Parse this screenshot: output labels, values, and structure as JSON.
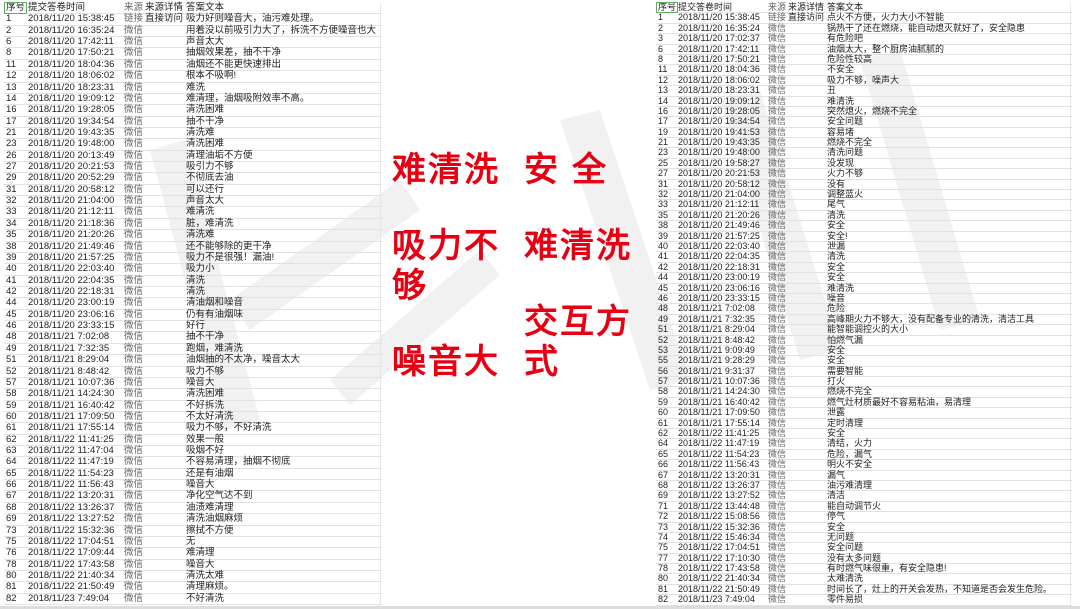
{
  "headers": [
    "序号",
    "提交答卷时间",
    "来源",
    "来源详情",
    "答案文本"
  ],
  "watermark": "KYWORTH",
  "accent_color": "#e60012",
  "left_labels": [
    "难清洗",
    "吸力不够",
    "噪音大"
  ],
  "right_labels": [
    "安全",
    "难清洗",
    "交互方式"
  ],
  "left_rows": [
    [
      "1",
      "2018/11/20 15:38:45",
      "链接",
      "直接访问",
      "吸力好则噪音大，油污难处理。"
    ],
    [
      "2",
      "2018/11/20 16:35:24",
      "微信",
      "",
      "用着没以前吸引力大了，拆洗不方便噪音也大"
    ],
    [
      "6",
      "2018/11/20 17:42:11",
      "微信",
      "",
      "声音太大"
    ],
    [
      "8",
      "2018/11/20 17:50:21",
      "微信",
      "",
      "抽烟效果差，抽不干净"
    ],
    [
      "11",
      "2018/11/20 18:04:36",
      "微信",
      "",
      "油烟还不能更快速排出"
    ],
    [
      "12",
      "2018/11/20 18:06:02",
      "微信",
      "",
      "根本不吸啊!"
    ],
    [
      "13",
      "2018/11/20 18:23:31",
      "微信",
      "",
      "难洗"
    ],
    [
      "14",
      "2018/11/20 19:09:12",
      "微信",
      "",
      "难清理，油烟吸附效率不高。"
    ],
    [
      "16",
      "2018/11/20 19:28:05",
      "微信",
      "",
      "清洗困难"
    ],
    [
      "17",
      "2018/11/20 19:34:54",
      "微信",
      "",
      "抽不干净"
    ],
    [
      "21",
      "2018/11/20 19:43:35",
      "微信",
      "",
      "清洗难"
    ],
    [
      "23",
      "2018/11/20 19:48:00",
      "微信",
      "",
      "清洗困难"
    ],
    [
      "26",
      "2018/11/20 20:13:49",
      "微信",
      "",
      "清理油垢不方便"
    ],
    [
      "27",
      "2018/11/20 20:21:53",
      "微信",
      "",
      "吸引力不够"
    ],
    [
      "29",
      "2018/11/20 20:52:29",
      "微信",
      "",
      "不彻底去油"
    ],
    [
      "31",
      "2018/11/20 20:58:12",
      "微信",
      "",
      "可以还行"
    ],
    [
      "32",
      "2018/11/20 21:04:00",
      "微信",
      "",
      "声音太大"
    ],
    [
      "33",
      "2018/11/20 21:12:11",
      "微信",
      "",
      "难清洗"
    ],
    [
      "34",
      "2018/11/20 21:18:36",
      "微信",
      "",
      "脏，难清洗"
    ],
    [
      "35",
      "2018/11/20 21:20:26",
      "微信",
      "",
      "清洗难"
    ],
    [
      "38",
      "2018/11/20 21:49:46",
      "微信",
      "",
      "还不能够除的更干净"
    ],
    [
      "39",
      "2018/11/20 21:57:25",
      "微信",
      "",
      "吸力不是很强！漏油!"
    ],
    [
      "40",
      "2018/11/20 22:03:40",
      "微信",
      "",
      "吸力小"
    ],
    [
      "41",
      "2018/11/20 22:04:35",
      "微信",
      "",
      "清洗"
    ],
    [
      "42",
      "2018/11/20 22:18:31",
      "微信",
      "",
      "清洗"
    ],
    [
      "44",
      "2018/11/20 23:00:19",
      "微信",
      "",
      "清油烟和噪音"
    ],
    [
      "45",
      "2018/11/20 23:06:16",
      "微信",
      "",
      "仍有有油烟味"
    ],
    [
      "46",
      "2018/11/20 23:33:15",
      "微信",
      "",
      "好行"
    ],
    [
      "48",
      "2018/11/21 7:02:08",
      "微信",
      "",
      "抽不干净"
    ],
    [
      "49",
      "2018/11/21 7:32:35",
      "微信",
      "",
      "跑烟，难清洗"
    ],
    [
      "51",
      "2018/11/21 8:29:04",
      "微信",
      "",
      "油烟抽的不太净，噪音太大"
    ],
    [
      "52",
      "2018/11/21 8:48:42",
      "微信",
      "",
      "吸力不够"
    ],
    [
      "57",
      "2018/11/21 10:07:36",
      "微信",
      "",
      "噪音大"
    ],
    [
      "58",
      "2018/11/21 14:24:30",
      "微信",
      "",
      "清洗困难"
    ],
    [
      "59",
      "2018/11/21 16:40:42",
      "微信",
      "",
      "不好拆洗"
    ],
    [
      "60",
      "2018/11/21 17:09:50",
      "微信",
      "",
      "不太好清洗"
    ],
    [
      "61",
      "2018/11/21 17:55:14",
      "微信",
      "",
      "吸力不够，不好清洗"
    ],
    [
      "62",
      "2018/11/22 11:41:25",
      "微信",
      "",
      "效果一般"
    ],
    [
      "63",
      "2018/11/22 11:47:04",
      "微信",
      "",
      "吸烟不好"
    ],
    [
      "64",
      "2018/11/22 11:47:19",
      "微信",
      "",
      "不容易清理，抽烟不彻底"
    ],
    [
      "65",
      "2018/11/22 11:54:23",
      "微信",
      "",
      "还是有油烟"
    ],
    [
      "66",
      "2018/11/22 11:56:43",
      "微信",
      "",
      "噪音大"
    ],
    [
      "67",
      "2018/11/22 13:20:31",
      "微信",
      "",
      "净化空气达不到"
    ],
    [
      "68",
      "2018/11/22 13:26:37",
      "微信",
      "",
      "油渍难清理"
    ],
    [
      "69",
      "2018/11/22 13:27:52",
      "微信",
      "",
      "清洗油烟麻烦"
    ],
    [
      "73",
      "2018/11/22 15:32:36",
      "微信",
      "",
      "擦拭不方便"
    ],
    [
      "75",
      "2018/11/22 17:04:51",
      "微信",
      "",
      "无"
    ],
    [
      "76",
      "2018/11/22 17:09:44",
      "微信",
      "",
      "难清理"
    ],
    [
      "78",
      "2018/11/22 17:43:58",
      "微信",
      "",
      "噪音大"
    ],
    [
      "80",
      "2018/11/22 21:40:34",
      "微信",
      "",
      "清洗太难"
    ],
    [
      "81",
      "2018/11/22 21:50:49",
      "微信",
      "",
      "清理麻烦。"
    ],
    [
      "82",
      "2018/11/23 7:49:04",
      "微信",
      "",
      "不好清洗"
    ]
  ],
  "right_rows": [
    [
      "1",
      "2018/11/20 15:38:45",
      "链接",
      "直接访问",
      "点火不方便，火力大小不智能"
    ],
    [
      "2",
      "2018/11/20 16:35:24",
      "微信",
      "",
      "锅热干了还在燃烧，能自动熄灭就好了，安全隐患"
    ],
    [
      "3",
      "2018/11/20 17:02:37",
      "微信",
      "",
      "有危险吧"
    ],
    [
      "6",
      "2018/11/20 17:42:11",
      "微信",
      "",
      "油烟太大，整个厨房油腻腻的"
    ],
    [
      "8",
      "2018/11/20 17:50:21",
      "微信",
      "",
      "危险性较高"
    ],
    [
      "11",
      "2018/11/20 18:04:36",
      "微信",
      "",
      "不安全"
    ],
    [
      "12",
      "2018/11/20 18:06:02",
      "微信",
      "",
      "吸力不够，噪声大"
    ],
    [
      "13",
      "2018/11/20 18:23:31",
      "微信",
      "",
      "丑"
    ],
    [
      "14",
      "2018/11/20 19:09:12",
      "微信",
      "",
      "难清洗"
    ],
    [
      "16",
      "2018/11/20 19:28:05",
      "微信",
      "",
      "突然熄火，燃烧不完全"
    ],
    [
      "17",
      "2018/11/20 19:34:54",
      "微信",
      "",
      "安全问题"
    ],
    [
      "19",
      "2018/11/20 19:41:53",
      "微信",
      "",
      "容易堵"
    ],
    [
      "21",
      "2018/11/20 19:43:35",
      "微信",
      "",
      "燃烧不完全"
    ],
    [
      "23",
      "2018/11/20 19:48:00",
      "微信",
      "",
      "清洗问题"
    ],
    [
      "25",
      "2018/11/20 19:58:27",
      "微信",
      "",
      "没发现"
    ],
    [
      "27",
      "2018/11/20 20:21:53",
      "微信",
      "",
      "火力不够"
    ],
    [
      "31",
      "2018/11/20 20:58:12",
      "微信",
      "",
      "没有"
    ],
    [
      "32",
      "2018/11/20 21:04:00",
      "微信",
      "",
      "调整蓝火"
    ],
    [
      "33",
      "2018/11/20 21:12:11",
      "微信",
      "",
      "尾气"
    ],
    [
      "35",
      "2018/11/20 21:20:26",
      "微信",
      "",
      "清洗"
    ],
    [
      "38",
      "2018/11/20 21:49:46",
      "微信",
      "",
      "安全"
    ],
    [
      "39",
      "2018/11/20 21:57:25",
      "微信",
      "",
      "安全!"
    ],
    [
      "40",
      "2018/11/20 22:03:40",
      "微信",
      "",
      "泄漏"
    ],
    [
      "41",
      "2018/11/20 22:04:35",
      "微信",
      "",
      "清洗"
    ],
    [
      "42",
      "2018/11/20 22:18:31",
      "微信",
      "",
      "安全"
    ],
    [
      "44",
      "2018/11/20 23:00:19",
      "微信",
      "",
      "安全"
    ],
    [
      "45",
      "2018/11/20 23:06:16",
      "微信",
      "",
      "难清洗"
    ],
    [
      "46",
      "2018/11/20 23:33:15",
      "微信",
      "",
      "噪音"
    ],
    [
      "48",
      "2018/11/21 7:02:08",
      "微信",
      "",
      "危险"
    ],
    [
      "49",
      "2018/11/21 7:32:35",
      "微信",
      "",
      "高峰期火力不够大，没有配备专业的清洗，清洁工具"
    ],
    [
      "51",
      "2018/11/21 8:29:04",
      "微信",
      "",
      "能智能调控火的大小"
    ],
    [
      "52",
      "2018/11/21 8:48:42",
      "微信",
      "",
      "怕燃气漏"
    ],
    [
      "53",
      "2018/11/21 9:09:49",
      "微信",
      "",
      "安全"
    ],
    [
      "55",
      "2018/11/21 9:28:29",
      "微信",
      "",
      "安全"
    ],
    [
      "56",
      "2018/11/21 9:31:37",
      "微信",
      "",
      "需要智能"
    ],
    [
      "57",
      "2018/11/21 10:07:36",
      "微信",
      "",
      "打火"
    ],
    [
      "58",
      "2018/11/21 14:24:30",
      "微信",
      "",
      "燃烧不完全"
    ],
    [
      "59",
      "2018/11/21 16:40:42",
      "微信",
      "",
      "燃气灶材质最好不容易粘油，易清理"
    ],
    [
      "60",
      "2018/11/21 17:09:50",
      "微信",
      "",
      "泄露"
    ],
    [
      "61",
      "2018/11/21 17:55:14",
      "微信",
      "",
      "定时清理"
    ],
    [
      "62",
      "2018/11/22 11:41:25",
      "微信",
      "",
      "安全"
    ],
    [
      "64",
      "2018/11/22 11:47:19",
      "微信",
      "",
      "清结，火力"
    ],
    [
      "65",
      "2018/11/22 11:54:23",
      "微信",
      "",
      "危险，漏气"
    ],
    [
      "66",
      "2018/11/22 11:56:43",
      "微信",
      "",
      "明火不安全"
    ],
    [
      "67",
      "2018/11/22 13:20:31",
      "微信",
      "",
      "漏气"
    ],
    [
      "68",
      "2018/11/22 13:26:37",
      "微信",
      "",
      "油污难清理"
    ],
    [
      "69",
      "2018/11/22 13:27:52",
      "微信",
      "",
      "清洁"
    ],
    [
      "71",
      "2018/11/22 13:44:48",
      "微信",
      "",
      "能自动调节火"
    ],
    [
      "72",
      "2018/11/22 15:08:56",
      "微信",
      "",
      "停气"
    ],
    [
      "73",
      "2018/11/22 15:32:36",
      "微信",
      "",
      "安全"
    ],
    [
      "74",
      "2018/11/22 15:46:34",
      "微信",
      "",
      "无问题"
    ],
    [
      "75",
      "2018/11/22 17:04:51",
      "微信",
      "",
      "安全问题"
    ],
    [
      "77",
      "2018/11/22 17:10:30",
      "微信",
      "",
      "没有太多问题"
    ],
    [
      "78",
      "2018/11/22 17:43:58",
      "微信",
      "",
      "有时燃气味很重，有安全隐患!"
    ],
    [
      "80",
      "2018/11/22 21:40:34",
      "微信",
      "",
      "太难清洗"
    ],
    [
      "81",
      "2018/11/22 21:50:49",
      "微信",
      "",
      "时间长了，灶上的开关会发热，不知道是否会发生危险。"
    ],
    [
      "82",
      "2018/11/23 7:49:04",
      "微信",
      "",
      "零件易损"
    ]
  ]
}
